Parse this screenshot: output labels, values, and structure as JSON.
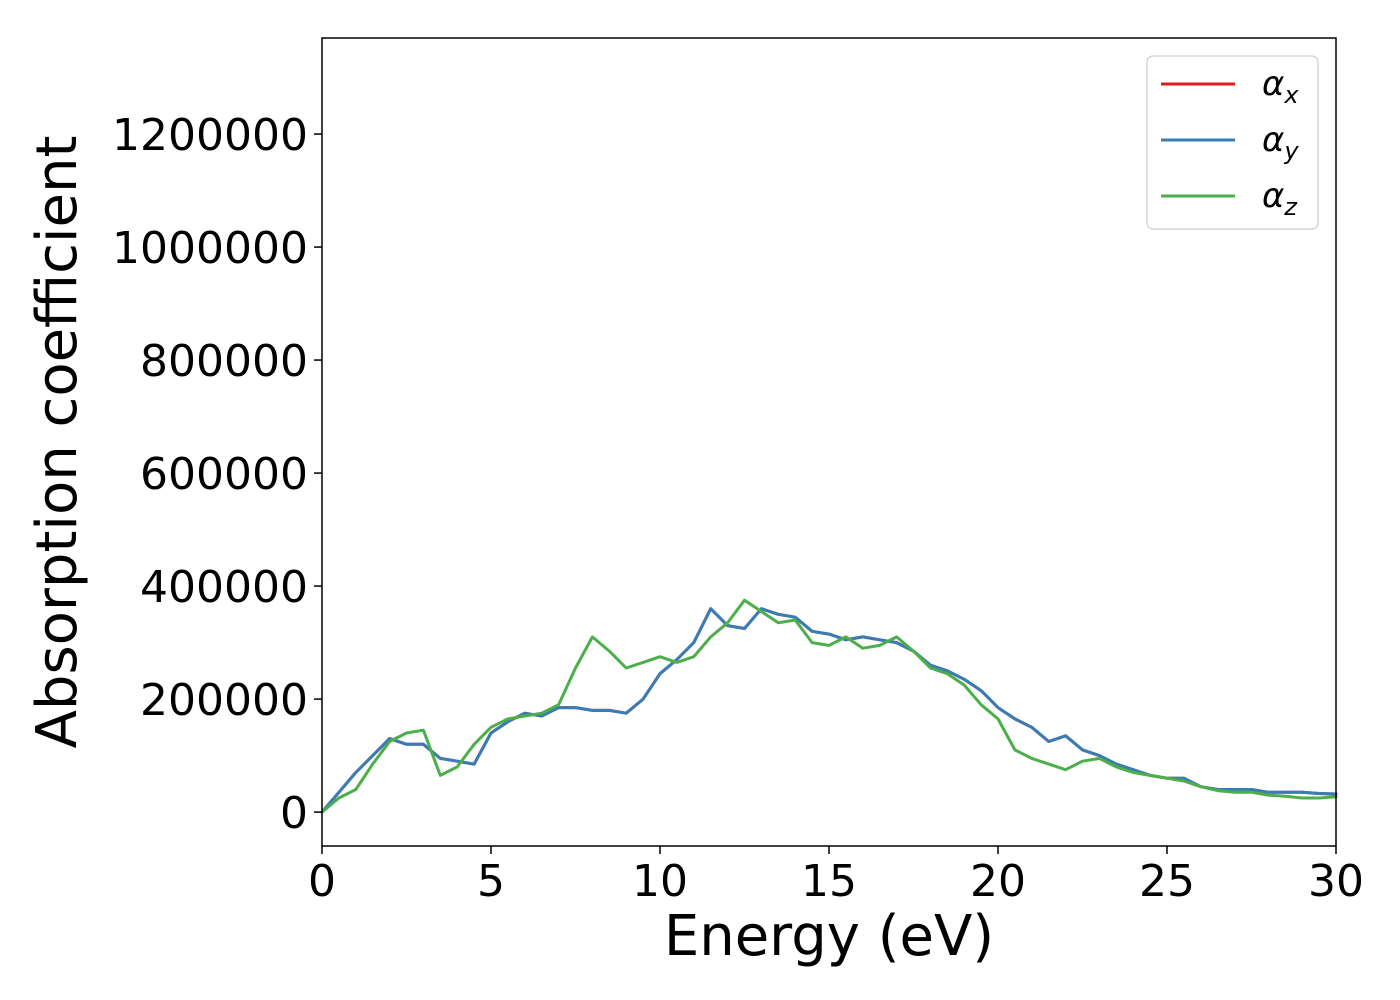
{
  "chart_data": {
    "type": "line",
    "xlabel": "Energy (eV)",
    "ylabel": "Absorption coefficient",
    "xlim": [
      0,
      30
    ],
    "ylim": [
      -60000,
      1370000
    ],
    "xticks": [
      0,
      5,
      10,
      15,
      20,
      25,
      30
    ],
    "yticks": [
      0,
      200000,
      400000,
      600000,
      800000,
      1000000,
      1200000
    ],
    "xtick_labels": [
      "0",
      "5",
      "10",
      "15",
      "20",
      "25",
      "30"
    ],
    "ytick_labels": [
      "0",
      "200000",
      "400000",
      "600000",
      "800000",
      "1000000",
      "1200000"
    ],
    "grid": false,
    "legend_position": "top-right",
    "x": [
      0,
      0.5,
      1,
      1.5,
      2,
      2.5,
      3,
      3.5,
      4,
      4.5,
      5,
      5.5,
      6,
      6.5,
      7,
      7.5,
      8,
      8.5,
      9,
      9.5,
      10,
      10.5,
      11,
      11.5,
      12,
      12.5,
      13,
      13.5,
      14,
      14.5,
      15,
      15.5,
      16,
      16.5,
      17,
      17.5,
      18,
      18.5,
      19,
      19.5,
      20,
      20.5,
      21,
      21.5,
      22,
      22.5,
      23,
      23.5,
      24,
      24.5,
      25,
      25.5,
      26,
      26.5,
      27,
      27.5,
      28,
      28.5,
      29,
      29.5,
      30
    ],
    "series": [
      {
        "name": "α_x",
        "legend_base": "α",
        "legend_sub": "x",
        "color": "#e41a1c",
        "values": [
          0,
          35000,
          70000,
          100000,
          130000,
          120000,
          120000,
          95000,
          90000,
          85000,
          140000,
          160000,
          175000,
          170000,
          185000,
          185000,
          180000,
          180000,
          175000,
          200000,
          245000,
          270000,
          300000,
          360000,
          330000,
          325000,
          360000,
          350000,
          345000,
          320000,
          315000,
          305000,
          310000,
          305000,
          300000,
          285000,
          260000,
          250000,
          235000,
          215000,
          185000,
          165000,
          150000,
          125000,
          135000,
          110000,
          100000,
          85000,
          75000,
          65000,
          60000,
          60000,
          45000,
          40000,
          40000,
          40000,
          35000,
          35000,
          35000,
          33000,
          32000
        ]
      },
      {
        "name": "α_y",
        "legend_base": "α",
        "legend_sub": "y",
        "color": "#377eb8",
        "values": [
          0,
          35000,
          70000,
          100000,
          130000,
          120000,
          120000,
          95000,
          90000,
          85000,
          140000,
          160000,
          175000,
          170000,
          185000,
          185000,
          180000,
          180000,
          175000,
          200000,
          245000,
          270000,
          300000,
          360000,
          330000,
          325000,
          360000,
          350000,
          345000,
          320000,
          315000,
          305000,
          310000,
          305000,
          300000,
          285000,
          260000,
          250000,
          235000,
          215000,
          185000,
          165000,
          150000,
          125000,
          135000,
          110000,
          100000,
          85000,
          75000,
          65000,
          60000,
          60000,
          45000,
          40000,
          40000,
          40000,
          35000,
          35000,
          35000,
          33000,
          32000
        ]
      },
      {
        "name": "α_z",
        "legend_base": "α",
        "legend_sub": "z",
        "color": "#4daf4a",
        "values": [
          0,
          25000,
          40000,
          85000,
          125000,
          140000,
          145000,
          65000,
          80000,
          120000,
          150000,
          165000,
          170000,
          175000,
          190000,
          255000,
          310000,
          285000,
          255000,
          265000,
          275000,
          265000,
          275000,
          310000,
          335000,
          375000,
          355000,
          335000,
          340000,
          300000,
          295000,
          310000,
          290000,
          295000,
          310000,
          285000,
          255000,
          245000,
          225000,
          190000,
          165000,
          110000,
          95000,
          85000,
          75000,
          90000,
          95000,
          80000,
          70000,
          65000,
          60000,
          55000,
          45000,
          38000,
          35000,
          35000,
          30000,
          28000,
          25000,
          25000,
          27000
        ]
      }
    ]
  }
}
